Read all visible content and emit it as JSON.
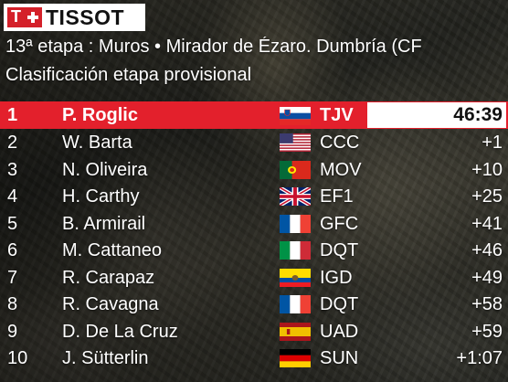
{
  "brand": {
    "name": "TISSOT",
    "mark_letter": "T"
  },
  "header": {
    "stage": "13ª etapa : Muros • Mirador de Ézaro. Dumbría (CF",
    "subtitle": "Clasificación etapa provisional"
  },
  "results": [
    {
      "pos": "1",
      "name": "P. Roglic",
      "flag": "slovenia-flag-icon",
      "team": "TJV",
      "gap": "46:39"
    },
    {
      "pos": "2",
      "name": "W. Barta",
      "flag": "usa-flag-icon",
      "team": "CCC",
      "gap": "+1"
    },
    {
      "pos": "3",
      "name": "N. Oliveira",
      "flag": "portugal-flag-icon",
      "team": "MOV",
      "gap": "+10"
    },
    {
      "pos": "4",
      "name": "H. Carthy",
      "flag": "uk-flag-icon",
      "team": "EF1",
      "gap": "+25"
    },
    {
      "pos": "5",
      "name": "B. Armirail",
      "flag": "france-flag-icon",
      "team": "GFC",
      "gap": "+41"
    },
    {
      "pos": "6",
      "name": "M. Cattaneo",
      "flag": "italy-flag-icon",
      "team": "DQT",
      "gap": "+46"
    },
    {
      "pos": "7",
      "name": "R. Carapaz",
      "flag": "ecuador-flag-icon",
      "team": "IGD",
      "gap": "+49"
    },
    {
      "pos": "8",
      "name": "R. Cavagna",
      "flag": "france-flag-icon",
      "team": "DQT",
      "gap": "+58"
    },
    {
      "pos": "9",
      "name": "D. De La Cruz",
      "flag": "spain-flag-icon",
      "team": "UAD",
      "gap": "+59"
    },
    {
      "pos": "10",
      "name": "J. Sütterlin",
      "flag": "germany-flag-icon",
      "team": "SUN",
      "gap": "+1:07"
    }
  ],
  "colors": {
    "brand_red": "#d42029",
    "leader_row": "#e3202c",
    "time_box": "#ffffff"
  }
}
